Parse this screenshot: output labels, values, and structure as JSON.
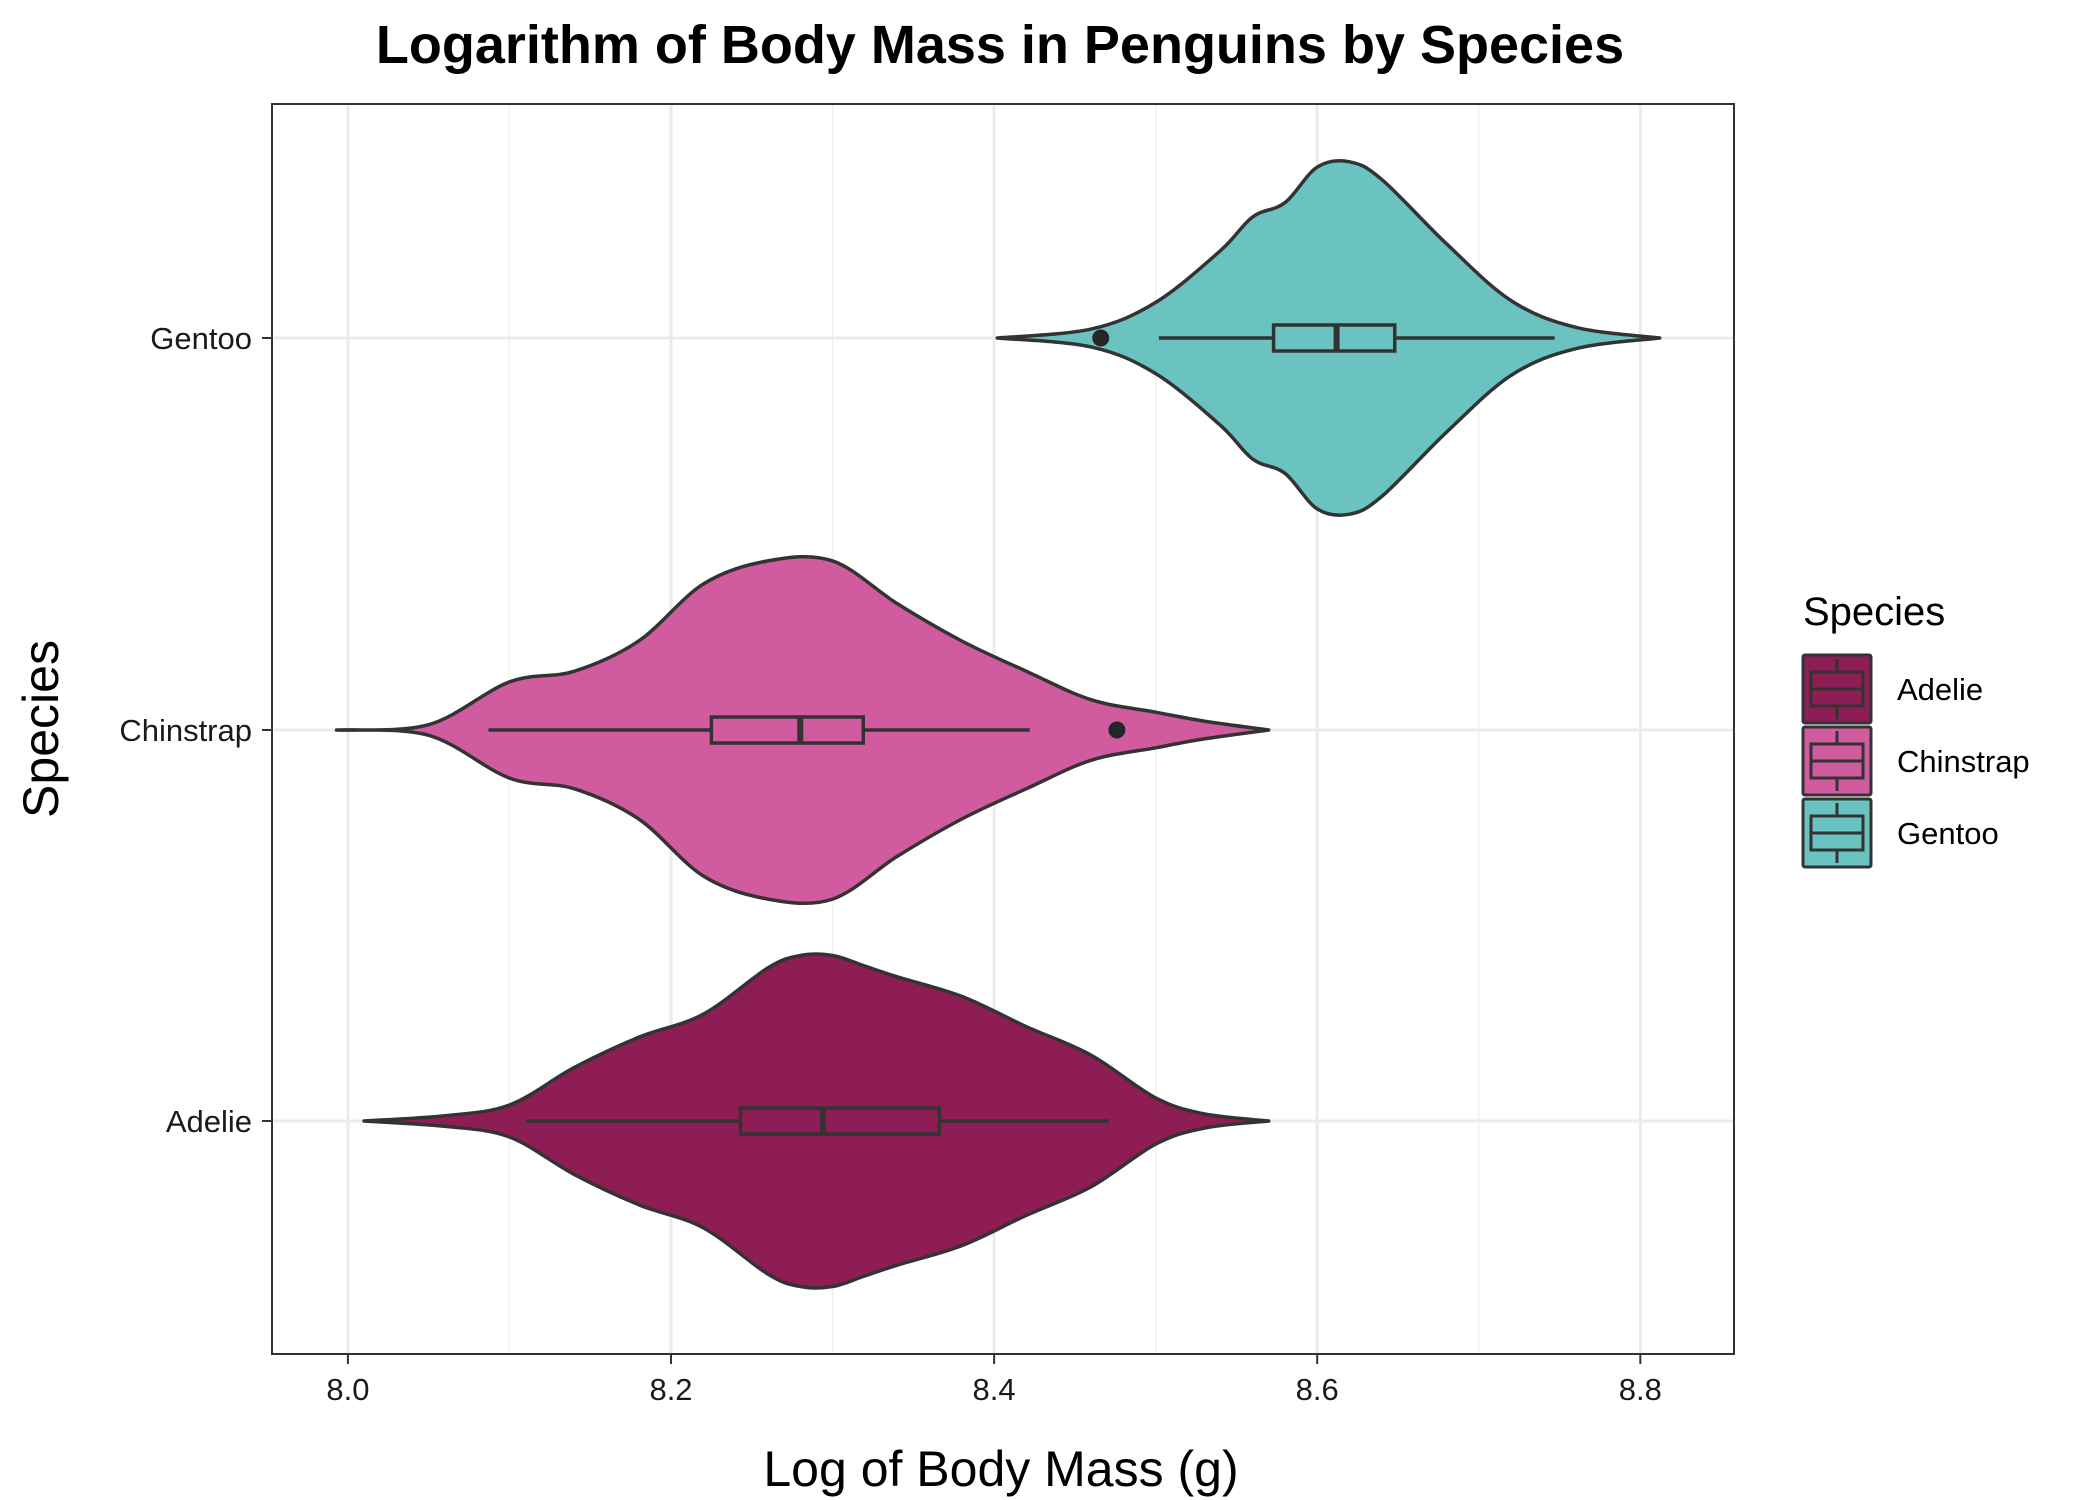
{
  "chart_data": {
    "type": "violin",
    "title": "Logarithm of Body Mass in Penguins by Species",
    "xlabel": "Log of Body Mass (g)",
    "ylabel": "Species",
    "xlim": [
      7.953,
      8.858
    ],
    "xticks": [
      8.0,
      8.2,
      8.4,
      8.6,
      8.8
    ],
    "xtick_labels": [
      "8.0",
      "8.2",
      "8.4",
      "8.6",
      "8.8"
    ],
    "categories": [
      "Adelie",
      "Chinstrap",
      "Gentoo"
    ],
    "grid": true,
    "legend": {
      "title": "Species",
      "position": "right",
      "entries": [
        "Adelie",
        "Chinstrap",
        "Gentoo"
      ]
    },
    "series": [
      {
        "name": "Adelie",
        "color": "#8f1d55",
        "min": 8.01,
        "max": 8.57,
        "density": [
          [
            8.01,
            0.0
          ],
          [
            8.06,
            0.03
          ],
          [
            8.1,
            0.09
          ],
          [
            8.14,
            0.3
          ],
          [
            8.18,
            0.47
          ],
          [
            8.22,
            0.6
          ],
          [
            8.26,
            0.86
          ],
          [
            8.28,
            0.93
          ],
          [
            8.3,
            0.93
          ],
          [
            8.32,
            0.87
          ],
          [
            8.34,
            0.81
          ],
          [
            8.38,
            0.7
          ],
          [
            8.42,
            0.53
          ],
          [
            8.46,
            0.37
          ],
          [
            8.5,
            0.13
          ],
          [
            8.53,
            0.04
          ],
          [
            8.57,
            0.0
          ]
        ],
        "boxplot": {
          "whisker_low": 8.11,
          "q1": 8.243,
          "median": 8.294,
          "q3": 8.366,
          "whisker_high": 8.471
        },
        "outliers": []
      },
      {
        "name": "Chinstrap",
        "color": "#d15b9f",
        "min": 7.993,
        "max": 8.57,
        "density": [
          [
            7.993,
            0.0
          ],
          [
            8.05,
            0.03
          ],
          [
            8.1,
            0.27
          ],
          [
            8.14,
            0.33
          ],
          [
            8.18,
            0.5
          ],
          [
            8.22,
            0.82
          ],
          [
            8.26,
            0.95
          ],
          [
            8.3,
            0.95
          ],
          [
            8.34,
            0.71
          ],
          [
            8.38,
            0.5
          ],
          [
            8.42,
            0.33
          ],
          [
            8.46,
            0.17
          ],
          [
            8.5,
            0.1
          ],
          [
            8.53,
            0.05
          ],
          [
            8.57,
            0.0
          ]
        ],
        "boxplot": {
          "whisker_low": 8.087,
          "q1": 8.225,
          "median": 8.28,
          "q3": 8.319,
          "whisker_high": 8.422
        },
        "outliers": [
          8.476
        ]
      },
      {
        "name": "Gentoo",
        "color": "#6bc3c1",
        "min": 8.402,
        "max": 8.812,
        "density": [
          [
            8.402,
            0.0
          ],
          [
            8.46,
            0.05
          ],
          [
            8.5,
            0.2
          ],
          [
            8.54,
            0.49
          ],
          [
            8.56,
            0.68
          ],
          [
            8.58,
            0.76
          ],
          [
            8.6,
            0.96
          ],
          [
            8.62,
            0.99
          ],
          [
            8.64,
            0.89
          ],
          [
            8.68,
            0.53
          ],
          [
            8.72,
            0.21
          ],
          [
            8.76,
            0.06
          ],
          [
            8.812,
            0.0
          ]
        ],
        "boxplot": {
          "whisker_low": 8.502,
          "q1": 8.573,
          "median": 8.612,
          "q3": 8.648,
          "whisker_high": 8.747
        },
        "outliers": [
          8.466
        ]
      }
    ]
  }
}
